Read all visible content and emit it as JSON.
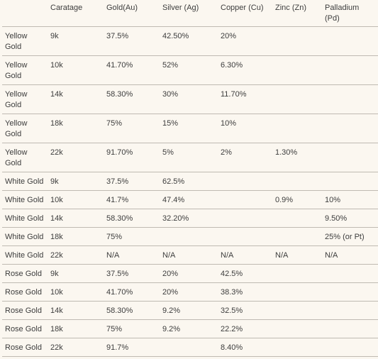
{
  "headers": [
    "",
    "Caratage",
    "Gold(Au)",
    "Silver (Ag)",
    "Copper (Cu)",
    "Zinc (Zn)",
    "Palladium (Pd)"
  ],
  "rows": [
    [
      "Yellow Gold",
      "9k",
      "37.5%",
      "42.50%",
      "20%",
      "",
      ""
    ],
    [
      "Yellow Gold",
      "10k",
      "41.70%",
      "52%",
      "6.30%",
      "",
      ""
    ],
    [
      "Yellow Gold",
      "14k",
      "58.30%",
      "30%",
      "11.70%",
      "",
      ""
    ],
    [
      "Yellow Gold",
      "18k",
      "75%",
      "15%",
      "10%",
      "",
      ""
    ],
    [
      "Yellow Gold",
      "22k",
      "91.70%",
      "5%",
      "2%",
      "1.30%",
      ""
    ],
    [
      "White Gold",
      "9k",
      "37.5%",
      "62.5%",
      "",
      "",
      ""
    ],
    [
      "White Gold",
      "10k",
      "41.7%",
      "47.4%",
      "",
      "0.9%",
      "10%"
    ],
    [
      "White Gold",
      "14k",
      "58.30%",
      "32.20%",
      "",
      "",
      "9.50%"
    ],
    [
      "White Gold",
      "18k",
      "75%",
      "",
      "",
      "",
      "25% (or Pt)"
    ],
    [
      "White Gold",
      "22k",
      "N/A",
      "N/A",
      "N/A",
      "N/A",
      "N/A"
    ],
    [
      "Rose Gold",
      "9k",
      "37.5%",
      "20%",
      "42.5%",
      "",
      ""
    ],
    [
      "Rose Gold",
      "10k",
      "41.70%",
      "20%",
      "38.3%",
      "",
      ""
    ],
    [
      "Rose Gold",
      "14k",
      "58.30%",
      "9.2%",
      "32.5%",
      "",
      ""
    ],
    [
      "Rose Gold",
      "18k",
      "75%",
      "9.2%",
      "22.2%",
      "",
      ""
    ],
    [
      "Rose Gold",
      "22k",
      "91.7%",
      "",
      "8.40%",
      "",
      ""
    ]
  ],
  "colors": {
    "background": "#fbf7f0",
    "text": "#3d3d3d",
    "rule": "#bfbab2"
  }
}
